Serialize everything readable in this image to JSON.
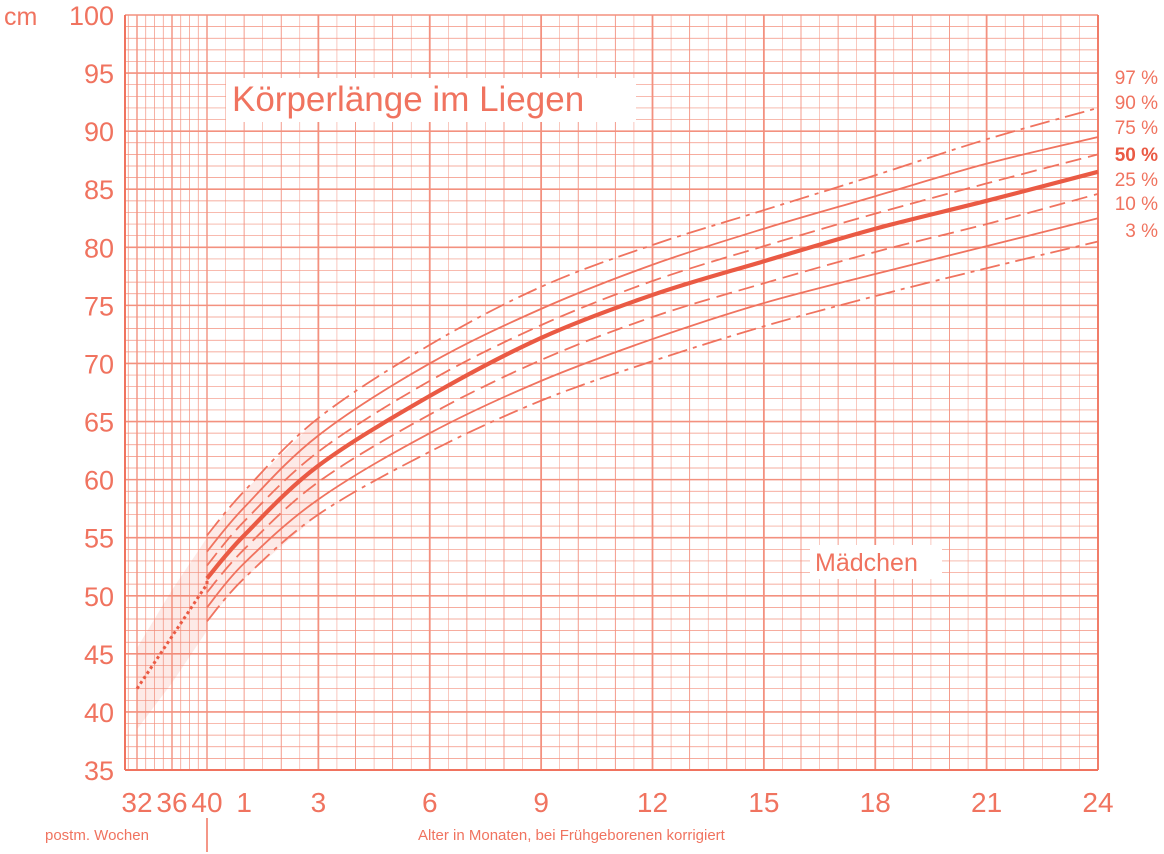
{
  "chart_data": {
    "type": "line",
    "title": "Körperlänge im Liegen",
    "group_label": "Mädchen",
    "y_unit": "cm",
    "ylim": [
      35,
      100
    ],
    "y_ticks": [
      35,
      40,
      45,
      50,
      55,
      60,
      65,
      70,
      75,
      80,
      85,
      90,
      95,
      100
    ],
    "x_ticks_weeks": [
      {
        "label": "32",
        "value": 32
      },
      {
        "label": "36",
        "value": 36
      },
      {
        "label": "40",
        "value": 40
      }
    ],
    "x_ticks_months": [
      1,
      3,
      6,
      9,
      12,
      15,
      18,
      21,
      24
    ],
    "xlabel_weeks": "postm. Wochen",
    "xlabel_months": "Alter in Monaten, bei Frühgeborenen korrigiert",
    "grid": true,
    "legend_placement": "right",
    "colors": {
      "ink": "#f0735f",
      "median": "#ea5a44",
      "grid": "#f3917f"
    },
    "series": [
      {
        "name": "97 %",
        "style": "dashdot",
        "x_months": [
          0,
          1,
          3,
          6,
          9,
          12,
          15,
          18,
          21,
          24
        ],
        "y": [
          55.2,
          59.0,
          65.3,
          71.6,
          76.6,
          80.2,
          83.2,
          86.2,
          89.3,
          92.0
        ]
      },
      {
        "name": "90 %",
        "style": "solid",
        "x_months": [
          0,
          1,
          3,
          6,
          9,
          12,
          15,
          18,
          21,
          24
        ],
        "y": [
          53.8,
          57.6,
          63.8,
          70.0,
          74.7,
          78.5,
          81.6,
          84.4,
          87.2,
          89.5
        ]
      },
      {
        "name": "75 %",
        "style": "dashed",
        "x_months": [
          0,
          1,
          3,
          6,
          9,
          12,
          15,
          18,
          21,
          24
        ],
        "y": [
          52.6,
          56.4,
          62.4,
          68.5,
          73.3,
          77.1,
          80.1,
          82.9,
          85.5,
          88.0
        ]
      },
      {
        "name": "50 %",
        "style": "bold",
        "x_months": [
          0,
          1,
          3,
          6,
          9,
          12,
          15,
          18,
          21,
          24
        ],
        "y": [
          51.5,
          55.2,
          61.2,
          67.2,
          72.2,
          75.9,
          78.8,
          81.6,
          84.0,
          86.5
        ]
      },
      {
        "name": "25 %",
        "style": "dashed",
        "x_months": [
          0,
          1,
          3,
          6,
          9,
          12,
          15,
          18,
          21,
          24
        ],
        "y": [
          50.3,
          54.0,
          59.8,
          65.6,
          70.3,
          74.0,
          76.9,
          79.6,
          82.0,
          84.6
        ]
      },
      {
        "name": "10 %",
        "style": "solid",
        "x_months": [
          0,
          1,
          3,
          6,
          9,
          12,
          15,
          18,
          21,
          24
        ],
        "y": [
          49.0,
          52.8,
          58.3,
          64.0,
          68.5,
          72.1,
          75.2,
          77.7,
          80.1,
          82.5
        ]
      },
      {
        "name": "3 %",
        "style": "dashdot",
        "x_months": [
          0,
          1,
          3,
          6,
          9,
          12,
          15,
          18,
          21,
          24
        ],
        "y": [
          47.8,
          51.5,
          57.0,
          62.4,
          66.8,
          70.2,
          73.2,
          75.8,
          78.2,
          80.5
        ]
      }
    ],
    "preterm_series": {
      "x_weeks": [
        32,
        36,
        40
      ],
      "median": [
        42.0,
        46.5,
        51.0
      ],
      "upper": [
        45.5,
        50.5,
        55.0
      ],
      "lower": [
        38.5,
        42.5,
        47.0
      ]
    }
  }
}
